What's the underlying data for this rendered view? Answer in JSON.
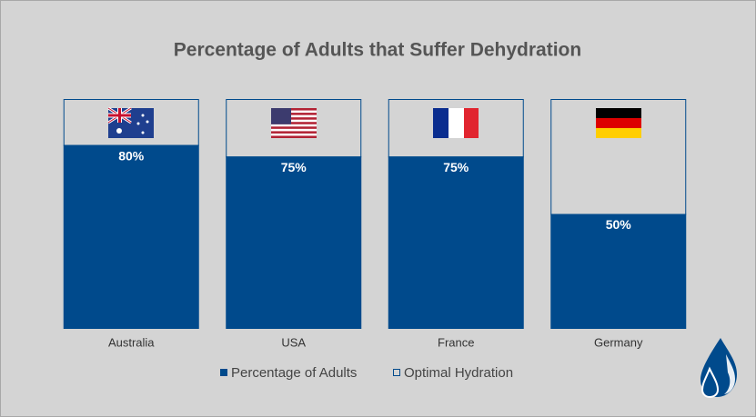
{
  "chart_data": {
    "type": "stacked_bar",
    "title": "Percentage of Adults that Suffer Dehydration",
    "categories": [
      "Australia",
      "USA",
      "France",
      "Germany"
    ],
    "series": [
      {
        "name": "Percentage of Adults",
        "color": "#004a8c",
        "values": [
          80,
          75,
          75,
          50
        ],
        "value_labels": [
          "80%",
          "75%",
          "75%",
          "50%"
        ]
      },
      {
        "name": "Optimal Hydration",
        "color": "#004a8c",
        "values": [
          20,
          25,
          25,
          50
        ]
      }
    ],
    "ylim": [
      0,
      100
    ],
    "legend": "bottom"
  }
}
